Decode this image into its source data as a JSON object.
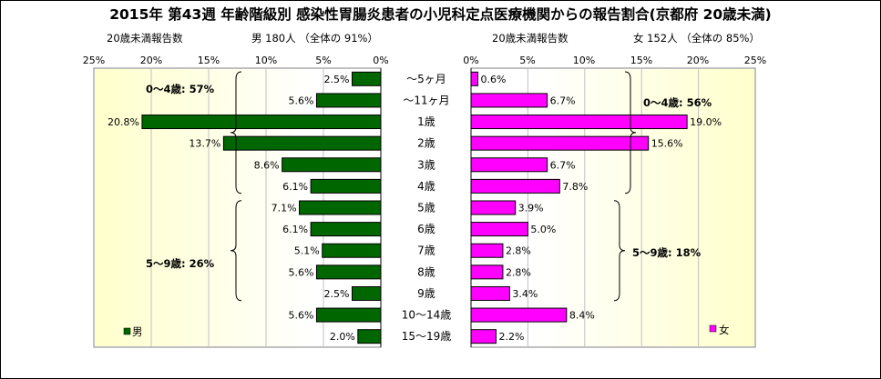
{
  "title": "2015年 第43週 年齢階級別 感染性胃腸炎患者の小児科定点医療機関からの報告割合(京都府 20歳未満)",
  "left_header": {
    "caption": "20歳未満報告数",
    "summary": "男  180人 （全体の  91%）"
  },
  "right_header": {
    "caption": "20歳未満報告数",
    "summary": "女  152人 （全体の  85%）"
  },
  "colors": {
    "male": "#006600",
    "female": "#ff00ff",
    "panel_bg": "#ffffcc",
    "frame": "#000000"
  },
  "chart_data": [
    {
      "type": "bar",
      "orientation": "horizontal",
      "direction": "right-to-left",
      "categories": [
        "～5ヶ月",
        "～11ヶ月",
        "1歳",
        "2歳",
        "3歳",
        "4歳",
        "5歳",
        "6歳",
        "7歳",
        "8歳",
        "9歳",
        "10～14歳",
        "15～19歳"
      ],
      "series": [
        {
          "name": "男",
          "values": [
            2.5,
            5.6,
            20.8,
            13.7,
            8.6,
            6.1,
            7.1,
            6.1,
            5.1,
            5.6,
            2.5,
            5.6,
            2.0
          ],
          "labels": [
            "2.5%",
            "5.6%",
            "20.8%",
            "13.7%",
            "8.6%",
            "6.1%",
            "7.1%",
            "6.1%",
            "5.1%",
            "5.6%",
            "2.5%",
            "5.6%",
            "2.0%"
          ]
        }
      ],
      "xlim": [
        0,
        25
      ],
      "ticks": [
        "25%",
        "20%",
        "15%",
        "10%",
        "5%",
        "0%"
      ],
      "annotations": [
        "0～4歳: 57%",
        "5～9歳: 26%"
      ],
      "legend": "bottom-left"
    },
    {
      "type": "bar",
      "orientation": "horizontal",
      "direction": "left-to-right",
      "categories": [
        "～5ヶ月",
        "～11ヶ月",
        "1歳",
        "2歳",
        "3歳",
        "4歳",
        "5歳",
        "6歳",
        "7歳",
        "8歳",
        "9歳",
        "10～14歳",
        "15～19歳"
      ],
      "series": [
        {
          "name": "女",
          "values": [
            0.6,
            6.7,
            19.0,
            15.6,
            6.7,
            7.8,
            3.9,
            5.0,
            2.8,
            2.8,
            3.4,
            8.4,
            2.2
          ],
          "labels": [
            "0.6%",
            "6.7%",
            "19.0%",
            "15.6%",
            "6.7%",
            "7.8%",
            "3.9%",
            "5.0%",
            "2.8%",
            "2.8%",
            "3.4%",
            "8.4%",
            "2.2%"
          ]
        }
      ],
      "xlim": [
        0,
        25
      ],
      "ticks": [
        "0%",
        "5%",
        "10%",
        "15%",
        "20%",
        "25%"
      ],
      "annotations": [
        "0～4歳: 56%",
        "5～9歳: 18%"
      ],
      "legend": "bottom-right"
    }
  ]
}
